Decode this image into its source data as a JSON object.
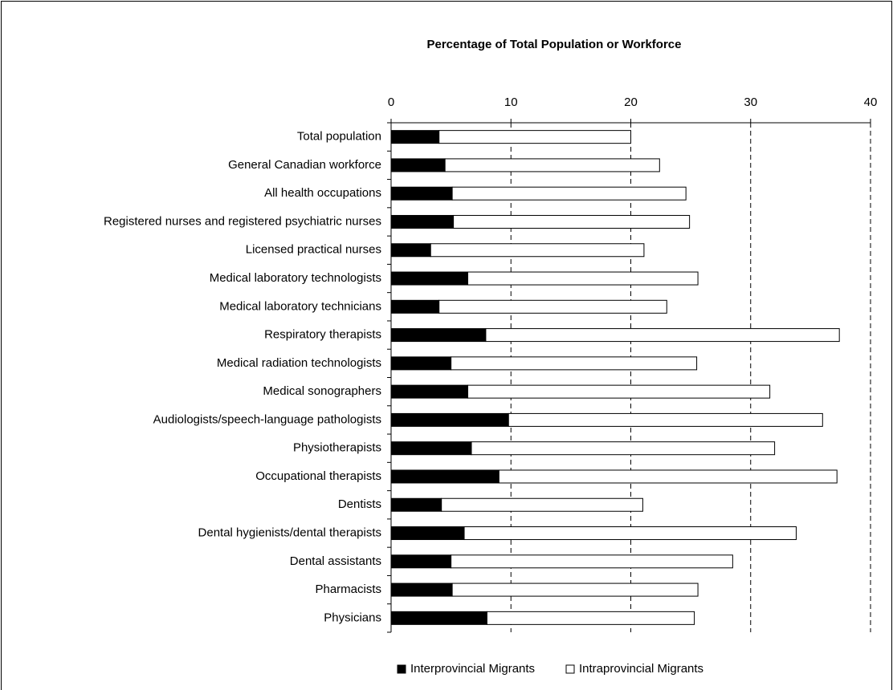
{
  "chart_data": {
    "type": "stacked_barh",
    "title": "Percentage of Total Population or Workforce",
    "categories": [
      "Total population",
      "General Canadian workforce",
      "All health occupations",
      "Registered nurses and registered psychiatric nurses",
      "Licensed practical nurses",
      "Medical laboratory technologists",
      "Medical laboratory technicians",
      "Respiratory therapists",
      "Medical radiation technologists",
      "Medical sonographers",
      "Audiologists/speech-language pathologists",
      "Physiotherapists",
      "Occupational therapists",
      "Dentists",
      "Dental hygienists/dental therapists",
      "Dental assistants",
      "Pharmacists",
      "Physicians"
    ],
    "series": [
      {
        "name": "Interprovincial Migrants",
        "color": "#000000",
        "values": [
          4.0,
          4.5,
          5.1,
          5.2,
          3.3,
          6.4,
          4.0,
          7.9,
          5.0,
          6.4,
          9.8,
          6.7,
          9.0,
          4.2,
          6.1,
          5.0,
          5.1,
          8.0
        ]
      },
      {
        "name": "Intraprovincial Migrants",
        "color": "#ffffff",
        "values": [
          16.0,
          17.9,
          19.5,
          19.7,
          17.8,
          19.2,
          19.0,
          29.5,
          20.5,
          25.2,
          26.2,
          25.3,
          28.2,
          16.8,
          27.7,
          23.5,
          20.5,
          17.3
        ]
      }
    ],
    "xlim": [
      0,
      40
    ],
    "xticks": [
      0,
      10,
      20,
      30,
      40
    ],
    "grid": true,
    "legend": "bottom"
  }
}
